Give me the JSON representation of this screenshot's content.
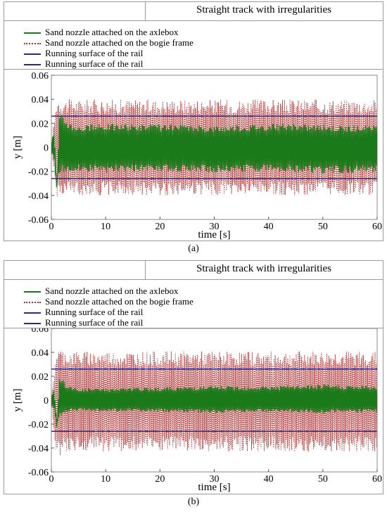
{
  "charts": [
    {
      "caption": "(a)",
      "chart_data": {
        "type": "line",
        "title": "Straight track with irregularities",
        "xlabel": "time [s]",
        "ylabel": "y [m]",
        "xlim": [
          0,
          60
        ],
        "ylim": [
          -0.06,
          0.06
        ],
        "xticks": [
          "0",
          "10",
          "20",
          "30",
          "40",
          "50",
          "60"
        ],
        "yticks": [
          "0.06",
          "0.04",
          "0.02",
          "0",
          "-0.02",
          "-0.04",
          "-0.06"
        ],
        "legend_position": "top",
        "series": [
          {
            "name": "Sand nozzle attached on the axlebox",
            "color": "#1a7a1a",
            "style": "solid",
            "x": [
              0,
              0.5,
              1,
              1.5,
              2,
              3,
              5,
              10,
              20,
              30,
              40,
              50,
              60
            ],
            "y_upper": [
              0.005,
              0.015,
              -0.038,
              0.025,
              0.028,
              0.022,
              0.018,
              0.02,
              0.019,
              0.018,
              0.02,
              0.019,
              0.018
            ],
            "y_lower": [
              -0.005,
              -0.01,
              -0.038,
              -0.025,
              -0.02,
              -0.022,
              -0.02,
              -0.021,
              -0.02,
              -0.021,
              -0.02,
              -0.022,
              -0.021
            ]
          },
          {
            "name": "Sand nozzle attached on the bogie frame",
            "color": "#b03030",
            "style": "dotted",
            "x": [
              0,
              1,
              2,
              5,
              10,
              20,
              30,
              40,
              50,
              60
            ],
            "y_upper": [
              0.002,
              0.042,
              0.04,
              0.04,
              0.04,
              0.04,
              0.04,
              0.04,
              0.04,
              0.04
            ],
            "y_lower": [
              -0.002,
              -0.042,
              -0.04,
              -0.04,
              -0.04,
              -0.04,
              -0.04,
              -0.04,
              -0.04,
              -0.04
            ]
          },
          {
            "name": "Running surface of the rail",
            "color": "#2a2a8a",
            "style": "solid",
            "x": [
              0,
              60
            ],
            "y": [
              0.026,
              0.026
            ]
          },
          {
            "name": "Running surface of the rail",
            "color": "#2a2a8a",
            "style": "solid",
            "x": [
              0,
              60
            ],
            "y": [
              -0.026,
              -0.026
            ]
          }
        ]
      }
    },
    {
      "caption": "(b)",
      "chart_data": {
        "type": "line",
        "title": "Straight track with irregularities",
        "xlabel": "time [s]",
        "ylabel": "y [m]",
        "xlim": [
          0,
          60
        ],
        "ylim": [
          -0.06,
          0.06
        ],
        "xticks": [
          "0",
          "10",
          "20",
          "30",
          "40",
          "50",
          "60"
        ],
        "yticks": [
          "0.06",
          "0.04",
          "0.02",
          "0",
          "-0.02",
          "-0.04",
          "-0.06"
        ],
        "legend_position": "top",
        "series": [
          {
            "name": "Sand nozzle attached on the axlebox",
            "color": "#1a7a1a",
            "style": "solid",
            "x": [
              0,
              0.5,
              1,
              1.5,
              2,
              3,
              5,
              10,
              20,
              30,
              40,
              50,
              60
            ],
            "y_upper": [
              0.005,
              0.01,
              -0.024,
              0.02,
              0.018,
              0.012,
              0.01,
              0.01,
              0.011,
              0.012,
              0.012,
              0.013,
              0.012
            ],
            "y_lower": [
              -0.005,
              -0.008,
              -0.024,
              -0.015,
              -0.012,
              -0.01,
              -0.009,
              -0.01,
              -0.01,
              -0.011,
              -0.01,
              -0.011,
              -0.01
            ]
          },
          {
            "name": "Sand nozzle attached on the bogie frame",
            "color": "#b03030",
            "style": "dotted",
            "x": [
              0,
              1,
              2,
              5,
              10,
              20,
              30,
              40,
              50,
              60
            ],
            "y_upper": [
              0.002,
              0.045,
              0.042,
              0.041,
              0.041,
              0.041,
              0.041,
              0.041,
              0.041,
              0.041
            ],
            "y_lower": [
              -0.002,
              -0.05,
              -0.044,
              -0.043,
              -0.043,
              -0.043,
              -0.043,
              -0.043,
              -0.043,
              -0.043
            ]
          },
          {
            "name": "Running surface of the rail",
            "color": "#2a2a8a",
            "style": "solid",
            "x": [
              0,
              60
            ],
            "y": [
              0.026,
              0.026
            ]
          },
          {
            "name": "Running surface of the rail",
            "color": "#2a2a8a",
            "style": "solid",
            "x": [
              0,
              60
            ],
            "y": [
              -0.026,
              -0.026
            ]
          }
        ]
      }
    }
  ]
}
